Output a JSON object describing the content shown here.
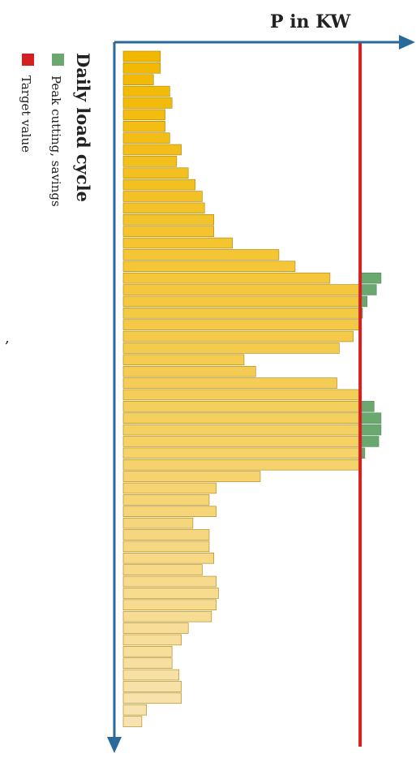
{
  "chart_data": {
    "type": "bar",
    "orientation": "horizontal",
    "x_axis_title": "P in KW",
    "legend": {
      "title": "Daily load cycle",
      "items": [
        {
          "label": "Peak cutting, savings",
          "color": "#6aa870"
        },
        {
          "label": "Target value",
          "color": "#d42020"
        }
      ]
    },
    "target_value": 102,
    "xlim": [
      0,
      125
    ],
    "load_values": [
      16,
      16,
      13,
      20,
      21,
      18,
      18,
      20,
      25,
      23,
      28,
      31,
      34,
      35,
      39,
      39,
      47,
      67,
      74,
      89,
      102,
      102,
      102,
      102,
      99,
      93,
      52,
      57,
      92,
      102,
      102,
      102,
      102,
      102,
      102,
      102,
      59,
      40,
      37,
      40,
      30,
      37,
      37,
      39,
      34,
      40,
      41,
      40,
      38,
      28,
      25,
      21,
      21,
      24,
      25,
      25,
      10,
      8
    ],
    "savings_values": [
      0,
      0,
      0,
      0,
      0,
      0,
      0,
      0,
      0,
      0,
      0,
      0,
      0,
      0,
      0,
      0,
      0,
      0,
      0,
      9,
      7,
      3,
      1,
      0,
      0,
      0,
      0,
      0,
      0,
      0,
      6,
      9,
      9,
      8,
      2,
      0,
      0,
      0,
      0,
      0,
      0,
      0,
      0,
      0,
      0,
      0,
      0,
      0,
      0,
      0,
      0,
      0,
      0,
      0,
      0,
      0,
      0,
      0
    ],
    "colors": {
      "bar_top": "#f2b800",
      "bar_bottom": "#f8e3b0",
      "bar_edge": "#a8820a",
      "savings": "#6aa870",
      "target": "#d42020",
      "axis": "#2a6a9a"
    }
  },
  "stray_mark": ","
}
